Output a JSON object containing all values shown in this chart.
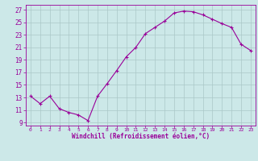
{
  "x": [
    0,
    1,
    2,
    3,
    4,
    5,
    6,
    7,
    8,
    9,
    10,
    11,
    12,
    13,
    14,
    15,
    16,
    17,
    18,
    19,
    20,
    21,
    22,
    23
  ],
  "y": [
    13.2,
    12.0,
    13.2,
    11.2,
    10.6,
    10.2,
    9.3,
    13.2,
    15.2,
    17.3,
    19.5,
    21.0,
    23.2,
    24.2,
    25.2,
    26.5,
    26.8,
    26.7,
    26.2,
    25.5,
    24.8,
    24.2,
    21.5,
    20.5
  ],
  "line_color": "#990099",
  "marker": "+",
  "bg_color": "#cce8e8",
  "grid_color": "#aac8c8",
  "xlabel": "Windchill (Refroidissement éolien,°C)",
  "yticks": [
    9,
    11,
    13,
    15,
    17,
    19,
    21,
    23,
    25,
    27
  ],
  "xtick_labels": [
    "0",
    "1",
    "2",
    "3",
    "4",
    "5",
    "6",
    "7",
    "8",
    "9",
    "10",
    "11",
    "12",
    "13",
    "14",
    "15",
    "16",
    "17",
    "18",
    "19",
    "20",
    "21",
    "22",
    "23"
  ],
  "ylim": [
    8.5,
    27.8
  ],
  "xlim": [
    -0.5,
    23.5
  ],
  "figsize": [
    3.2,
    2.0
  ],
  "dpi": 100
}
